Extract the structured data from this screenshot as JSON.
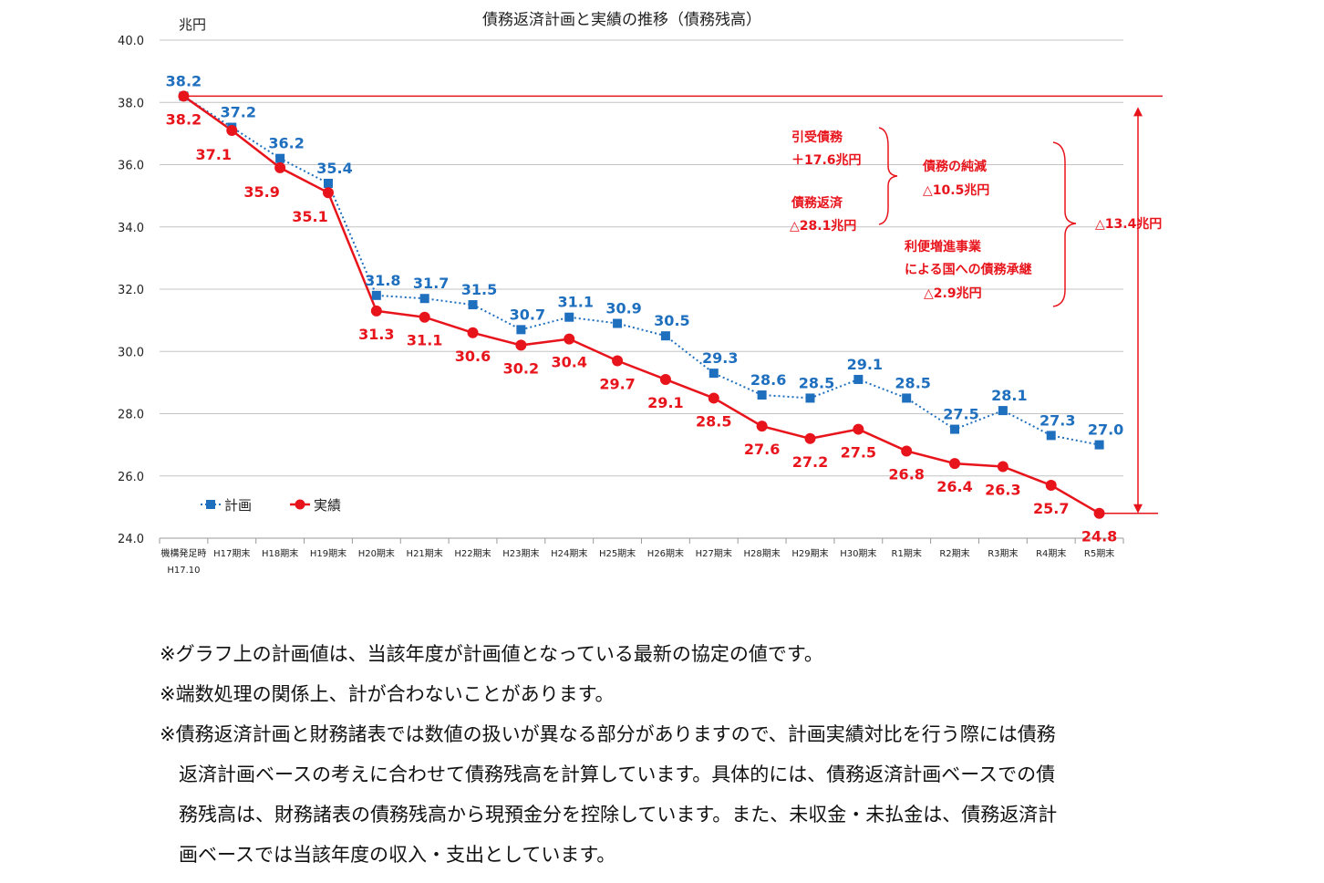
{
  "chart_data": {
    "type": "line",
    "title": "債務返済計画と実績の推移（債務残高）",
    "ylabel": "兆円",
    "ylim": [
      24.0,
      40.0
    ],
    "y_ticks": [
      "40.0",
      "38.0",
      "36.0",
      "34.0",
      "32.0",
      "30.0",
      "28.0",
      "26.0",
      "24.0"
    ],
    "categories": [
      "機構発足時",
      "H17期末",
      "H18期末",
      "H19期末",
      "H20期末",
      "H21期末",
      "H22期末",
      "H23期末",
      "H24期末",
      "H25期末",
      "H26期末",
      "H27期末",
      "H28期末",
      "H29期末",
      "H30期末",
      "R1期末",
      "R2期末",
      "R3期末",
      "R4期末",
      "R5期末"
    ],
    "first_category_sub": "H17.10",
    "grid": true,
    "legend_position": "bottom-left",
    "series": [
      {
        "name": "計画",
        "color": "#1f6fbf",
        "values": [
          38.2,
          37.2,
          36.2,
          35.4,
          31.8,
          31.7,
          31.5,
          30.7,
          31.1,
          30.9,
          30.5,
          29.3,
          28.6,
          28.5,
          29.1,
          28.5,
          27.5,
          28.1,
          27.3,
          27.0
        ],
        "labels": [
          "38.2",
          "37.2",
          "36.2",
          "35.4",
          "31.8",
          "31.7",
          "31.5",
          "30.7",
          "31.1",
          "30.9",
          "30.5",
          "29.3",
          "28.6",
          "28.5",
          "29.1",
          "28.5",
          "27.5",
          "28.1",
          "27.3",
          "27.0"
        ]
      },
      {
        "name": "実績",
        "color": "#e8141c",
        "values": [
          38.2,
          37.1,
          35.9,
          35.1,
          31.3,
          31.1,
          30.6,
          30.2,
          30.4,
          29.7,
          29.1,
          28.5,
          27.6,
          27.2,
          27.5,
          26.8,
          26.4,
          26.3,
          25.7,
          24.8
        ],
        "labels": [
          "38.2",
          "37.1",
          "35.9",
          "35.1",
          "31.3",
          "31.1",
          "30.6",
          "30.2",
          "30.4",
          "29.7",
          "29.1",
          "28.5",
          "27.6",
          "27.2",
          "27.5",
          "26.8",
          "26.4",
          "26.3",
          "25.7",
          "24.8"
        ]
      }
    ],
    "annotations": {
      "accepted_label": "引受債務",
      "accepted_value": "＋17.6兆円",
      "repaid_label": "債務返済",
      "repaid_value": "△28.1兆円",
      "net_label": "債務の純減",
      "net_value": "△10.5兆円",
      "transfer_line1": "利便増進事業",
      "transfer_line2": "による国への債務承継",
      "transfer_value": "△2.9兆円",
      "total_value": "△13.4兆円"
    }
  },
  "notes": [
    "※グラフ上の計画値は、当該年度が計画値となっている最新の協定の値です。",
    "※端数処理の関係上、計が合わないことがあります。",
    "※債務返済計画と財務諸表では数値の扱いが異なる部分がありますので、計画実績対比を行う際には債務",
    "返済計画ベースの考えに合わせて債務残高を計算しています。具体的には、債務返済計画ベースでの債",
    "務残高は、財務諸表の債務残高から現預金分を控除しています。また、未収金・未払金は、債務返済計",
    "画ベースでは当該年度の収入・支出としています。"
  ]
}
